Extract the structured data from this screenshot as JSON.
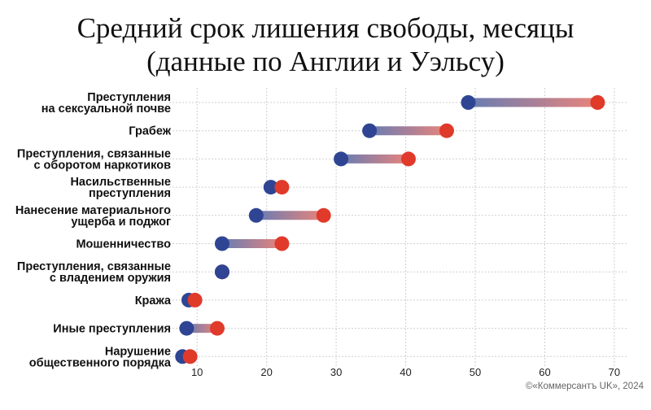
{
  "chart_data": {
    "type": "dumbbell",
    "title_lines": [
      "Средний срок лишения свободы, месяцы",
      "(данные по Англии и Уэльсу)"
    ],
    "categories": [
      [
        "Преступления",
        "на сексуальной почве"
      ],
      [
        "Грабеж"
      ],
      [
        "Преступления, связанные",
        "с оборотом наркотиков"
      ],
      [
        "Насильственные",
        "преступления"
      ],
      [
        "Нанесение материального",
        "ущерба и поджог"
      ],
      [
        "Мошенничество"
      ],
      [
        "Преступления, связанные",
        "с владением оружия"
      ],
      [
        "Кража"
      ],
      [
        "Иные преступления"
      ],
      [
        "Нарушение",
        "общественного порядка"
      ]
    ],
    "series": [
      {
        "color": "#2f4593",
        "values": [
          49,
          34.8,
          30.7,
          20.6,
          18.5,
          13.6,
          13.6,
          8.8,
          8.5,
          7.9
        ]
      },
      {
        "color": "#e03a2a",
        "values": [
          67.6,
          45.9,
          40.4,
          22.2,
          28.2,
          22.2,
          13.6,
          9.7,
          12.9,
          9.0
        ]
      }
    ],
    "xticks": [
      10,
      20,
      30,
      40,
      50,
      60,
      70
    ],
    "xlim": [
      6,
      72
    ],
    "grid": true,
    "source": "©«Коммерсантъ UK», 2024"
  }
}
